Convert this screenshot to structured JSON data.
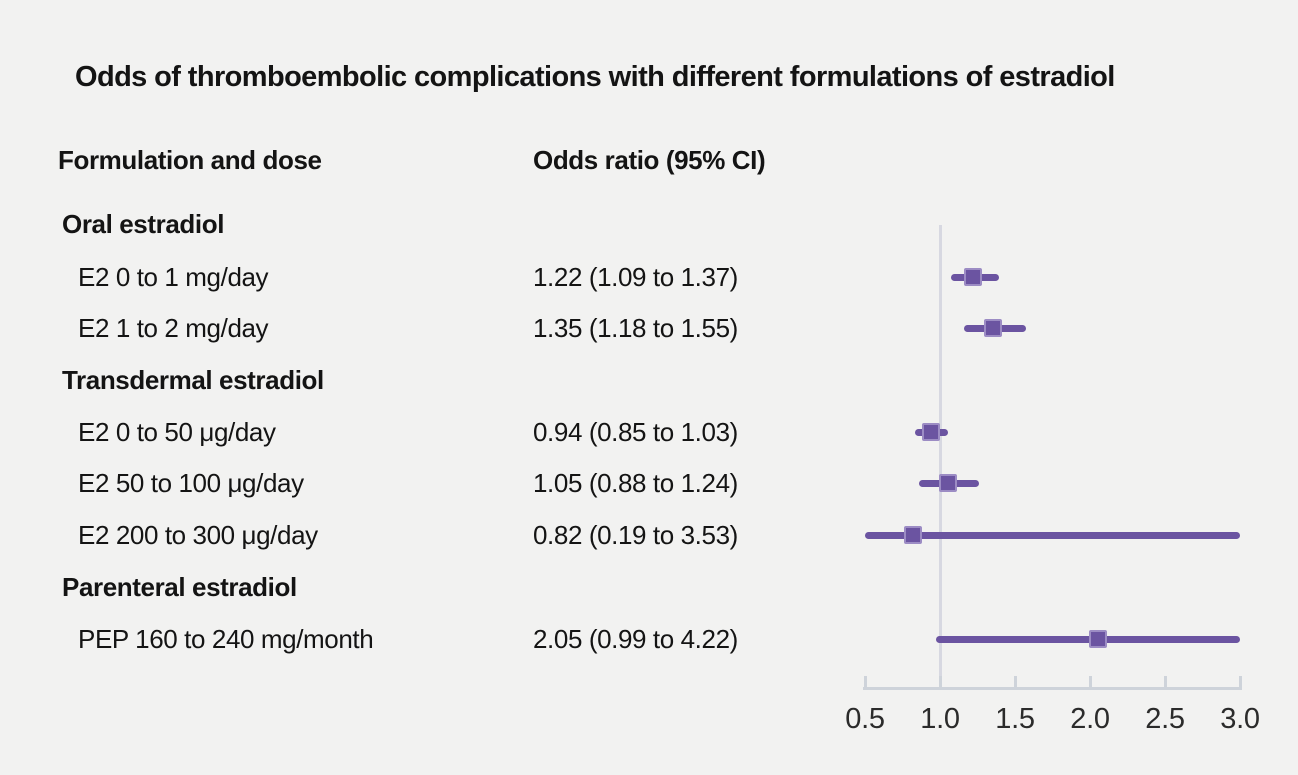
{
  "title": "Odds of thromboembolic complications with different formulations of estradiol",
  "columns": {
    "formulation_header": "Formulation and dose",
    "odds_ratio_header": "Odds ratio (95% CI)"
  },
  "rows": [
    {
      "type": "section",
      "label": "Oral estradiol"
    },
    {
      "type": "item",
      "label": "E2 0 to 1 mg/day",
      "value": "1.22 (1.09 to 1.37)"
    },
    {
      "type": "item",
      "label": "E2 1 to 2 mg/day",
      "value": "1.35 (1.18 to 1.55)"
    },
    {
      "type": "section",
      "label": "Transdermal estradiol"
    },
    {
      "type": "item",
      "label": "E2 0 to 50 μg/day",
      "value": "0.94 (0.85 to 1.03)"
    },
    {
      "type": "item",
      "label": "E2 50 to 100 μg/day",
      "value": "1.05 (0.88 to 1.24)"
    },
    {
      "type": "item",
      "label": "E2 200 to 300 μg/day",
      "value": "0.82 (0.19 to 3.53)"
    },
    {
      "type": "section",
      "label": "Parenteral estradiol"
    },
    {
      "type": "item",
      "label": "PEP 160 to 240 mg/month",
      "value": "2.05 (0.99 to 4.22)"
    }
  ],
  "chart_data": {
    "type": "forest",
    "title": "Odds of thromboembolic complications with different formulations of estradiol",
    "xlabel": "",
    "ylabel": "",
    "x_axis": {
      "range": [
        0.5,
        3.0
      ],
      "ticks": [
        0.5,
        1.0,
        1.5,
        2.0,
        2.5,
        3.0
      ],
      "tick_labels": [
        "0.5",
        "1.0",
        "1.5",
        "2.0",
        "2.5",
        "3.0"
      ],
      "reference_line": 1.0,
      "grid": false
    },
    "points": [
      {
        "label": "E2 0 to 1 mg/day",
        "or": 1.22,
        "ci_low": 1.09,
        "ci_high": 1.37
      },
      {
        "label": "E2 1 to 2 mg/day",
        "or": 1.35,
        "ci_low": 1.18,
        "ci_high": 1.55
      },
      {
        "label": "E2 0 to 50 μg/day",
        "or": 0.94,
        "ci_low": 0.85,
        "ci_high": 1.03
      },
      {
        "label": "E2 50 to 100 μg/day",
        "or": 1.05,
        "ci_low": 0.88,
        "ci_high": 1.24
      },
      {
        "label": "E2 200 to 300 μg/day",
        "or": 0.82,
        "ci_low": 0.19,
        "ci_high": 3.53
      },
      {
        "label": "PEP 160 to 240 mg/month",
        "or": 2.05,
        "ci_low": 0.99,
        "ci_high": 4.22
      }
    ]
  },
  "colors": {
    "background": "#f2f2f1",
    "marker": "#6b54a1",
    "marker_border": "#9c8cc4",
    "ci_line": "#6b54a1",
    "reference_line": "#d7d8e1",
    "axis": "#ced3da",
    "text": "#141414",
    "tick_text": "#2b2b2b"
  }
}
